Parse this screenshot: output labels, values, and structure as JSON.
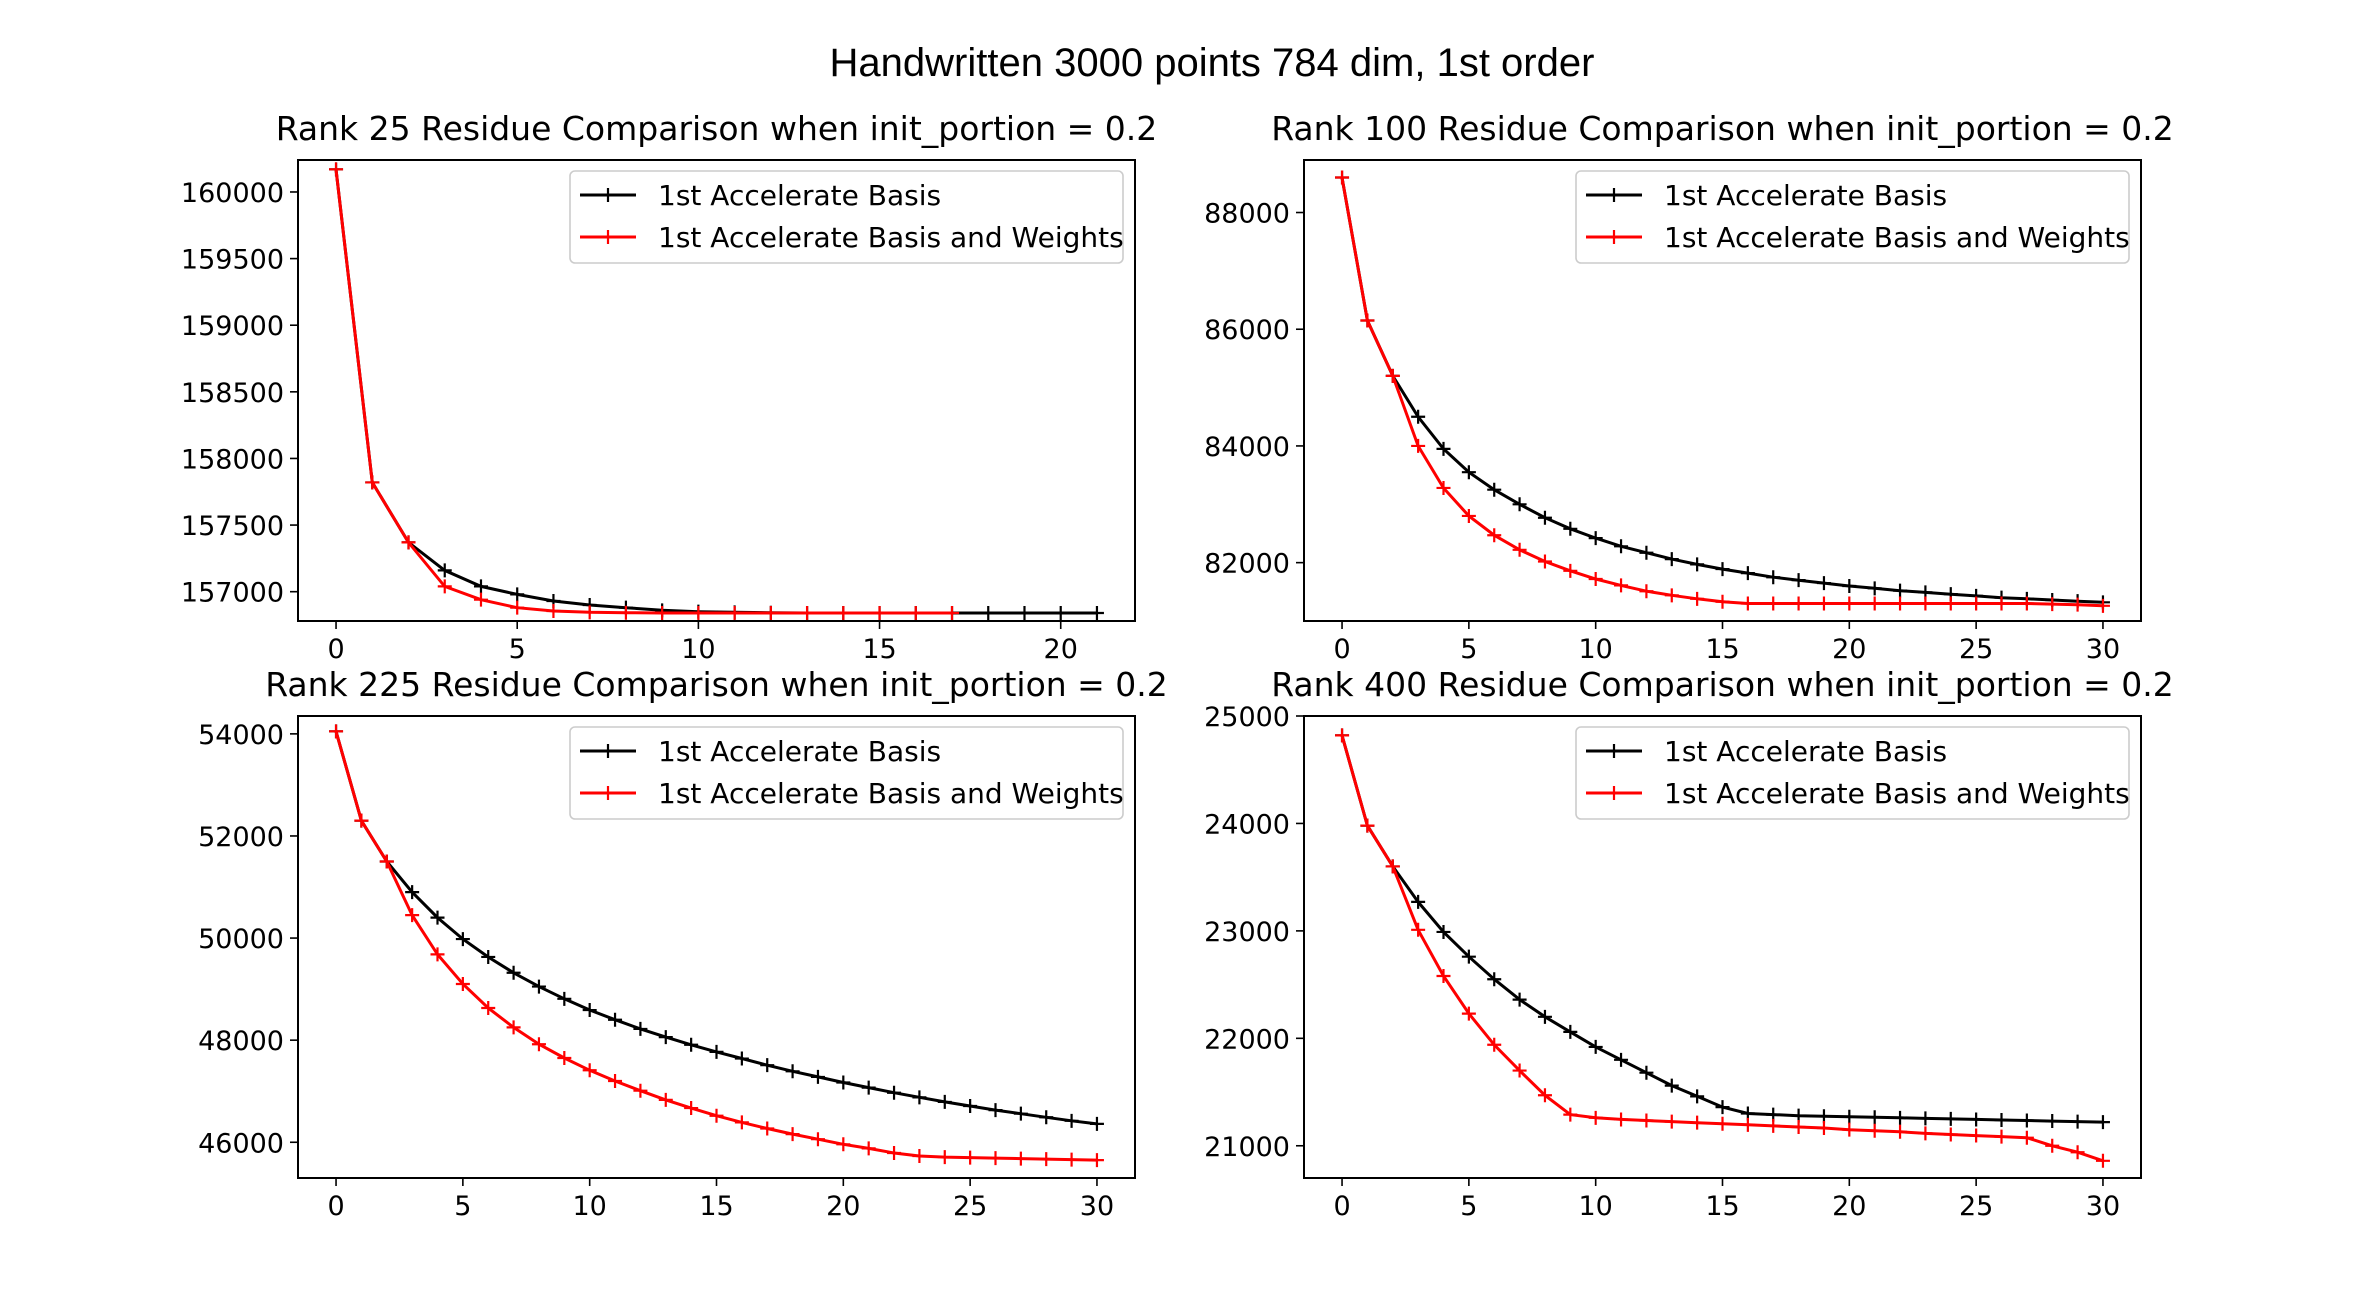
{
  "title": "Handwritten 3000 points 784 dim, 1st order",
  "colors": {
    "series_0": "#000000",
    "series_1": "#ff0000"
  },
  "chart_data": [
    {
      "type": "line",
      "title": "Rank 25 Residue Comparison when init_portion = 0.2",
      "xlabel": "",
      "ylabel": "",
      "xlim": [
        -1.05,
        22.05
      ],
      "ylim": [
        156780,
        160240
      ],
      "xticks": [
        0,
        5,
        10,
        15,
        20
      ],
      "yticks": [
        157000,
        157500,
        158000,
        158500,
        159000,
        159500,
        160000
      ],
      "grid": false,
      "legend": "upper right",
      "series": [
        {
          "name": "1st Accelerate Basis",
          "x": [
            0,
            1,
            2,
            3,
            4,
            5,
            6,
            7,
            8,
            9,
            10,
            11,
            12,
            13,
            14,
            15,
            16,
            17,
            18,
            19,
            20,
            21
          ],
          "y": [
            160170,
            157820,
            157370,
            157160,
            157040,
            156980,
            156930,
            156900,
            156880,
            156860,
            156850,
            156845,
            156842,
            156840,
            156840,
            156840,
            156840,
            156840,
            156840,
            156840,
            156840,
            156840
          ]
        },
        {
          "name": "1st Accelerate Basis and Weights",
          "x": [
            0,
            1,
            2,
            3,
            4,
            5,
            6,
            7,
            8,
            9,
            10,
            11,
            12,
            13,
            14,
            15,
            16,
            17
          ],
          "y": [
            160170,
            157820,
            157370,
            157040,
            156940,
            156880,
            156855,
            156845,
            156842,
            156840,
            156840,
            156840,
            156840,
            156840,
            156840,
            156840,
            156840,
            156840
          ]
        }
      ]
    },
    {
      "type": "line",
      "title": "Rank 100 Residue Comparison when init_portion = 0.2",
      "xlabel": "",
      "ylabel": "",
      "xlim": [
        -1.5,
        31.5
      ],
      "ylim": [
        81000,
        88900
      ],
      "xticks": [
        0,
        5,
        10,
        15,
        20,
        25,
        30
      ],
      "yticks": [
        82000,
        84000,
        86000,
        88000
      ],
      "grid": false,
      "legend": "upper right",
      "series": [
        {
          "name": "1st Accelerate Basis",
          "x": [
            0,
            1,
            2,
            3,
            4,
            5,
            6,
            7,
            8,
            9,
            10,
            11,
            12,
            13,
            14,
            15,
            16,
            17,
            18,
            19,
            20,
            21,
            22,
            23,
            24,
            25,
            26,
            27,
            28,
            29,
            30
          ],
          "y": [
            88600,
            86150,
            85200,
            84500,
            83950,
            83550,
            83250,
            83000,
            82770,
            82580,
            82420,
            82280,
            82170,
            82060,
            81970,
            81890,
            81820,
            81750,
            81700,
            81650,
            81600,
            81560,
            81520,
            81490,
            81460,
            81430,
            81400,
            81380,
            81360,
            81340,
            81320
          ]
        },
        {
          "name": "1st Accelerate Basis and Weights",
          "x": [
            0,
            1,
            2,
            3,
            4,
            5,
            6,
            7,
            8,
            9,
            10,
            11,
            12,
            13,
            14,
            15,
            16,
            17,
            18,
            19,
            20,
            21,
            22,
            23,
            24,
            25,
            26,
            27,
            28,
            29,
            30
          ],
          "y": [
            88600,
            86150,
            85200,
            84000,
            83280,
            82800,
            82470,
            82220,
            82020,
            81860,
            81720,
            81610,
            81510,
            81440,
            81380,
            81330,
            81300,
            81300,
            81300,
            81300,
            81300,
            81300,
            81300,
            81300,
            81300,
            81300,
            81300,
            81300,
            81290,
            81280,
            81260
          ]
        }
      ]
    },
    {
      "type": "line",
      "title": "Rank 225 Residue Comparison when init_portion = 0.2",
      "xlabel": "",
      "ylabel": "",
      "xlim": [
        -1.5,
        31.5
      ],
      "ylim": [
        45300,
        54350
      ],
      "xticks": [
        0,
        5,
        10,
        15,
        20,
        25,
        30
      ],
      "yticks": [
        46000,
        48000,
        50000,
        52000,
        54000
      ],
      "grid": false,
      "legend": "upper right",
      "series": [
        {
          "name": "1st Accelerate Basis",
          "x": [
            0,
            1,
            2,
            3,
            4,
            5,
            6,
            7,
            8,
            9,
            10,
            11,
            12,
            13,
            14,
            15,
            16,
            17,
            18,
            19,
            20,
            21,
            22,
            23,
            24,
            25,
            26,
            27,
            28,
            29,
            30
          ],
          "y": [
            54050,
            52300,
            51500,
            50900,
            50400,
            49980,
            49630,
            49320,
            49050,
            48810,
            48590,
            48400,
            48220,
            48060,
            47910,
            47770,
            47640,
            47510,
            47390,
            47280,
            47170,
            47070,
            46970,
            46880,
            46790,
            46710,
            46630,
            46560,
            46490,
            46420,
            46360
          ]
        },
        {
          "name": "1st Accelerate Basis and Weights",
          "x": [
            0,
            1,
            2,
            3,
            4,
            5,
            6,
            7,
            8,
            9,
            10,
            11,
            12,
            13,
            14,
            15,
            16,
            17,
            18,
            19,
            20,
            21,
            22,
            23,
            24,
            25,
            26,
            27,
            28,
            29,
            30
          ],
          "y": [
            54050,
            52300,
            51500,
            50450,
            49680,
            49100,
            48630,
            48250,
            47920,
            47650,
            47410,
            47200,
            47010,
            46830,
            46670,
            46520,
            46390,
            46270,
            46160,
            46060,
            45960,
            45880,
            45790,
            45730,
            45710,
            45700,
            45690,
            45680,
            45670,
            45660,
            45650
          ]
        }
      ]
    },
    {
      "type": "line",
      "title": "Rank 400 Residue Comparison when init_portion = 0.2",
      "xlabel": "",
      "ylabel": "",
      "xlim": [
        -1.5,
        31.5
      ],
      "ylim": [
        20700,
        25000
      ],
      "xticks": [
        0,
        5,
        10,
        15,
        20,
        25,
        30
      ],
      "yticks": [
        21000,
        22000,
        23000,
        24000,
        25000
      ],
      "grid": false,
      "legend": "upper right",
      "series": [
        {
          "name": "1st Accelerate Basis",
          "x": [
            0,
            1,
            2,
            3,
            4,
            5,
            6,
            7,
            8,
            9,
            10,
            11,
            12,
            13,
            14,
            15,
            16,
            17,
            18,
            19,
            20,
            21,
            22,
            23,
            24,
            25,
            26,
            27,
            28,
            29,
            30
          ],
          "y": [
            24820,
            23980,
            23600,
            23270,
            22990,
            22760,
            22550,
            22360,
            22200,
            22060,
            21920,
            21800,
            21680,
            21560,
            21460,
            21360,
            21300,
            21290,
            21280,
            21275,
            21270,
            21265,
            21260,
            21255,
            21250,
            21245,
            21240,
            21235,
            21230,
            21225,
            21220
          ]
        },
        {
          "name": "1st Accelerate Basis and Weights",
          "x": [
            0,
            1,
            2,
            3,
            4,
            5,
            6,
            7,
            8,
            9,
            10,
            11,
            12,
            13,
            14,
            15,
            16,
            17,
            18,
            19,
            20,
            21,
            22,
            23,
            24,
            25,
            26,
            27,
            28,
            29,
            30
          ],
          "y": [
            24820,
            23980,
            23600,
            23010,
            22580,
            22230,
            21940,
            21700,
            21470,
            21290,
            21260,
            21245,
            21235,
            21225,
            21215,
            21205,
            21195,
            21185,
            21175,
            21165,
            21150,
            21140,
            21130,
            21115,
            21105,
            21095,
            21085,
            21075,
            21000,
            20940,
            20860
          ]
        }
      ]
    }
  ]
}
